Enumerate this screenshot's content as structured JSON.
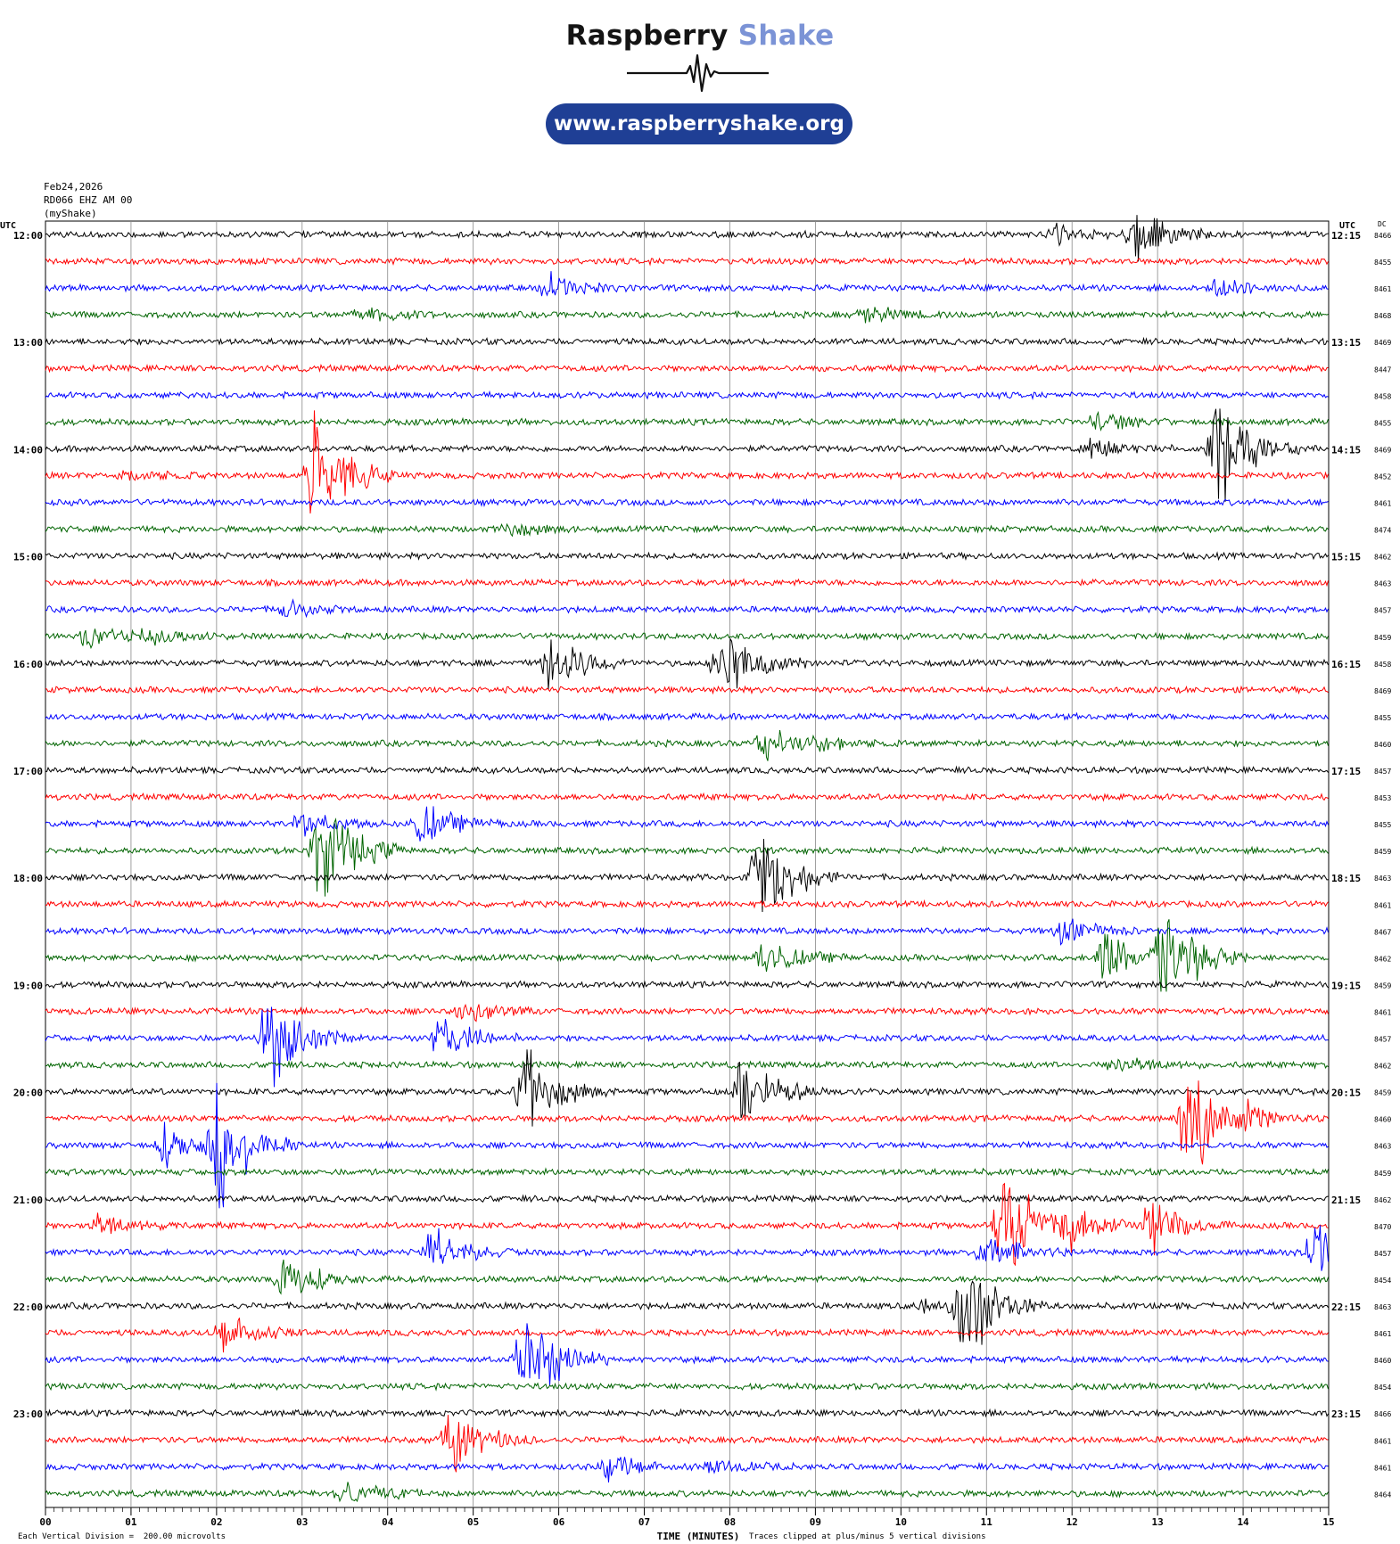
{
  "brand": {
    "name_part1": "Raspberry",
    "name_part2": "Shake",
    "url": "www.raspberryshake.org"
  },
  "header": {
    "date": "Feb24,2026",
    "station": "RD066 EHZ AM 00",
    "network": "(myShake)"
  },
  "axis": {
    "left_label": "UTC",
    "right_label": "UTC",
    "dc_label": "DC",
    "xlabel": "TIME (MINUTES)"
  },
  "footer": {
    "scale_note": "Each Vertical Division =  200.00 microvolts",
    "clip_note": "Traces clipped at plus/minus 5 vertical divisions"
  },
  "chart_data": {
    "type": "line",
    "x_ticks": [
      "00",
      "01",
      "02",
      "03",
      "04",
      "05",
      "06",
      "07",
      "08",
      "09",
      "10",
      "11",
      "12",
      "13",
      "14",
      "15"
    ],
    "xlim": [
      0,
      15
    ],
    "grid": true,
    "trace_colors": [
      "#000000",
      "#ff0000",
      "#0000ff",
      "#006400"
    ],
    "left_hour_labels": [
      "12:00",
      "13:00",
      "14:00",
      "15:00",
      "16:00",
      "17:00",
      "18:00",
      "19:00",
      "20:00",
      "21:00",
      "22:00",
      "23:00"
    ],
    "right_hour_labels": [
      "12:15",
      "13:15",
      "14:15",
      "15:15",
      "16:15",
      "17:15",
      "18:15",
      "19:15",
      "20:15",
      "21:15",
      "22:15",
      "23:15"
    ],
    "dc_offsets": [
      "8466",
      "8455",
      "8461",
      "8468",
      "8469",
      "8447",
      "8458",
      "8455",
      "8469",
      "8452",
      "8461",
      "8474",
      "8462",
      "8463",
      "8457",
      "8459",
      "8458",
      "8469",
      "8455",
      "8460",
      "8457",
      "8453",
      "8455",
      "8459",
      "8463",
      "8461",
      "8467",
      "8462",
      "8459",
      "8461",
      "8457",
      "8462",
      "8459",
      "8460",
      "8463",
      "8459",
      "8462",
      "8470",
      "8457",
      "8454",
      "8463",
      "8461",
      "8460",
      "8454",
      "8466",
      "8461",
      "8461",
      "8464"
    ],
    "events": [
      {
        "trace": 0,
        "minute": 12.75,
        "amplitude": 2.0
      },
      {
        "trace": 0,
        "minute": 11.8,
        "amplitude": 0.8
      },
      {
        "trace": 2,
        "minute": 5.9,
        "amplitude": 1.0
      },
      {
        "trace": 2,
        "minute": 13.7,
        "amplitude": 0.8
      },
      {
        "trace": 3,
        "minute": 3.7,
        "amplitude": 0.6
      },
      {
        "trace": 3,
        "minute": 9.6,
        "amplitude": 0.6
      },
      {
        "trace": 7,
        "minute": 12.3,
        "amplitude": 0.8
      },
      {
        "trace": 8,
        "minute": 13.7,
        "amplitude": 4.0
      },
      {
        "trace": 8,
        "minute": 12.2,
        "amplitude": 0.8
      },
      {
        "trace": 9,
        "minute": 3.15,
        "amplitude": 4.5
      },
      {
        "trace": 9,
        "minute": 0.9,
        "amplitude": 0.6
      },
      {
        "trace": 11,
        "minute": 5.4,
        "amplitude": 0.6
      },
      {
        "trace": 14,
        "minute": 2.8,
        "amplitude": 0.6
      },
      {
        "trace": 15,
        "minute": 0.5,
        "amplitude": 0.9
      },
      {
        "trace": 15,
        "minute": 1.2,
        "amplitude": 0.6
      },
      {
        "trace": 16,
        "minute": 5.9,
        "amplitude": 2.5
      },
      {
        "trace": 16,
        "minute": 7.9,
        "amplitude": 3.0
      },
      {
        "trace": 19,
        "minute": 8.4,
        "amplitude": 1.2
      },
      {
        "trace": 19,
        "minute": 9.0,
        "amplitude": 0.6
      },
      {
        "trace": 22,
        "minute": 3.0,
        "amplitude": 1.0
      },
      {
        "trace": 22,
        "minute": 4.4,
        "amplitude": 1.6
      },
      {
        "trace": 23,
        "minute": 3.2,
        "amplitude": 4.5
      },
      {
        "trace": 24,
        "minute": 8.35,
        "amplitude": 4.0
      },
      {
        "trace": 26,
        "minute": 11.9,
        "amplitude": 1.0
      },
      {
        "trace": 27,
        "minute": 8.4,
        "amplitude": 1.5
      },
      {
        "trace": 27,
        "minute": 12.4,
        "amplitude": 2.0
      },
      {
        "trace": 27,
        "minute": 13.05,
        "amplitude": 4.5
      },
      {
        "trace": 29,
        "minute": 4.9,
        "amplitude": 1.0
      },
      {
        "trace": 30,
        "minute": 2.6,
        "amplitude": 4.0
      },
      {
        "trace": 30,
        "minute": 4.6,
        "amplitude": 1.8
      },
      {
        "trace": 31,
        "minute": 12.5,
        "amplitude": 0.8
      },
      {
        "trace": 32,
        "minute": 5.6,
        "amplitude": 3.5
      },
      {
        "trace": 32,
        "minute": 8.15,
        "amplitude": 3.0
      },
      {
        "trace": 33,
        "minute": 13.35,
        "amplitude": 4.5
      },
      {
        "trace": 33,
        "minute": 14.0,
        "amplitude": 0.8
      },
      {
        "trace": 34,
        "minute": 2.0,
        "amplitude": 5.0
      },
      {
        "trace": 34,
        "minute": 1.4,
        "amplitude": 1.5
      },
      {
        "trace": 37,
        "minute": 0.6,
        "amplitude": 0.9
      },
      {
        "trace": 37,
        "minute": 11.2,
        "amplitude": 4.5
      },
      {
        "trace": 37,
        "minute": 12.0,
        "amplitude": 1.5
      },
      {
        "trace": 37,
        "minute": 12.9,
        "amplitude": 2.0
      },
      {
        "trace": 38,
        "minute": 4.5,
        "amplitude": 2.0
      },
      {
        "trace": 38,
        "minute": 14.85,
        "amplitude": 2.5
      },
      {
        "trace": 38,
        "minute": 11.0,
        "amplitude": 1.5
      },
      {
        "trace": 39,
        "minute": 2.8,
        "amplitude": 1.8
      },
      {
        "trace": 40,
        "minute": 10.7,
        "amplitude": 5.0
      },
      {
        "trace": 40,
        "minute": 10.3,
        "amplitude": 0.7
      },
      {
        "trace": 41,
        "minute": 2.1,
        "amplitude": 1.6
      },
      {
        "trace": 42,
        "minute": 5.6,
        "amplitude": 4.0
      },
      {
        "trace": 45,
        "minute": 4.75,
        "amplitude": 2.5
      },
      {
        "trace": 46,
        "minute": 6.6,
        "amplitude": 1.0
      },
      {
        "trace": 46,
        "minute": 7.8,
        "amplitude": 0.6
      },
      {
        "trace": 47,
        "minute": 3.5,
        "amplitude": 1.2
      }
    ]
  }
}
